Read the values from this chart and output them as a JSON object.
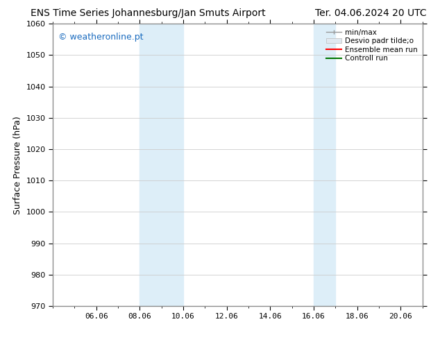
{
  "title_left": "ENS Time Series Johannesburg/Jan Smuts Airport",
  "title_right": "Ter. 04.06.2024 20 UTC",
  "ylabel": "Surface Pressure (hPa)",
  "ylim": [
    970,
    1060
  ],
  "yticks": [
    970,
    980,
    990,
    1000,
    1010,
    1020,
    1030,
    1040,
    1050,
    1060
  ],
  "xlim": [
    4.0,
    21.0
  ],
  "xtick_positions": [
    6,
    8,
    10,
    12,
    14,
    16,
    18,
    20
  ],
  "xtick_labels": [
    "06.06",
    "08.06",
    "10.06",
    "12.06",
    "14.06",
    "16.06",
    "18.06",
    "20.06"
  ],
  "shaded_bands": [
    {
      "x_start": 8.0,
      "x_end": 10.0
    },
    {
      "x_start": 16.0,
      "x_end": 17.0
    }
  ],
  "shaded_color": "#ddeef8",
  "watermark_text": "© weatheronline.pt",
  "watermark_color": "#1a6bbf",
  "legend_labels": [
    "min/max",
    "Desvio padr tilde;o",
    "Ensemble mean run",
    "Controll run"
  ],
  "legend_colors": [
    "#999999",
    "#cccccc",
    "#ff0000",
    "#007700"
  ],
  "bg_color": "#ffffff",
  "plot_bg_color": "#ffffff",
  "grid_color": "#cccccc",
  "title_fontsize": 10,
  "ylabel_fontsize": 9,
  "tick_fontsize": 8,
  "legend_fontsize": 7.5,
  "watermark_fontsize": 9
}
